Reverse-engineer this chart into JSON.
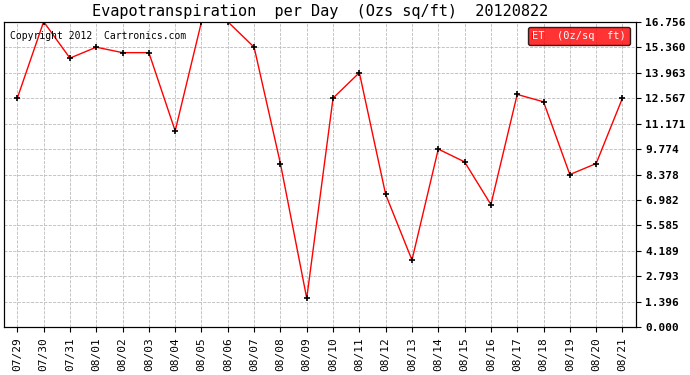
{
  "title": "Evapotranspiration  per Day  (Ozs sq/ft)  20120822",
  "copyright": "Copyright 2012  Cartronics.com",
  "legend_label": "ET  (0z/sq  ft)",
  "x_labels": [
    "07/29",
    "07/30",
    "07/31",
    "08/01",
    "08/02",
    "08/03",
    "08/04",
    "08/05",
    "08/06",
    "08/07",
    "08/08",
    "08/09",
    "08/10",
    "08/11",
    "08/12",
    "08/13",
    "08/14",
    "08/15",
    "08/16",
    "08/17",
    "08/18",
    "08/19",
    "08/20",
    "08/21"
  ],
  "y_values": [
    12.567,
    16.756,
    14.76,
    15.36,
    15.061,
    15.061,
    10.77,
    16.756,
    16.756,
    15.36,
    8.98,
    1.596,
    12.567,
    13.963,
    7.285,
    3.69,
    9.774,
    9.072,
    6.732,
    12.77,
    12.365,
    8.378,
    8.98,
    12.567
  ],
  "y_ticks": [
    0.0,
    1.396,
    2.793,
    4.189,
    5.585,
    6.982,
    8.378,
    9.774,
    11.171,
    12.567,
    13.963,
    15.36,
    16.756
  ],
  "line_color": "red",
  "marker_color": "black",
  "background_color": "white",
  "grid_color": "#bbbbbb",
  "title_fontsize": 11,
  "copyright_fontsize": 7,
  "tick_fontsize": 8,
  "legend_bg": "red",
  "legend_fg": "white",
  "figwidth": 6.9,
  "figheight": 3.75,
  "dpi": 100
}
